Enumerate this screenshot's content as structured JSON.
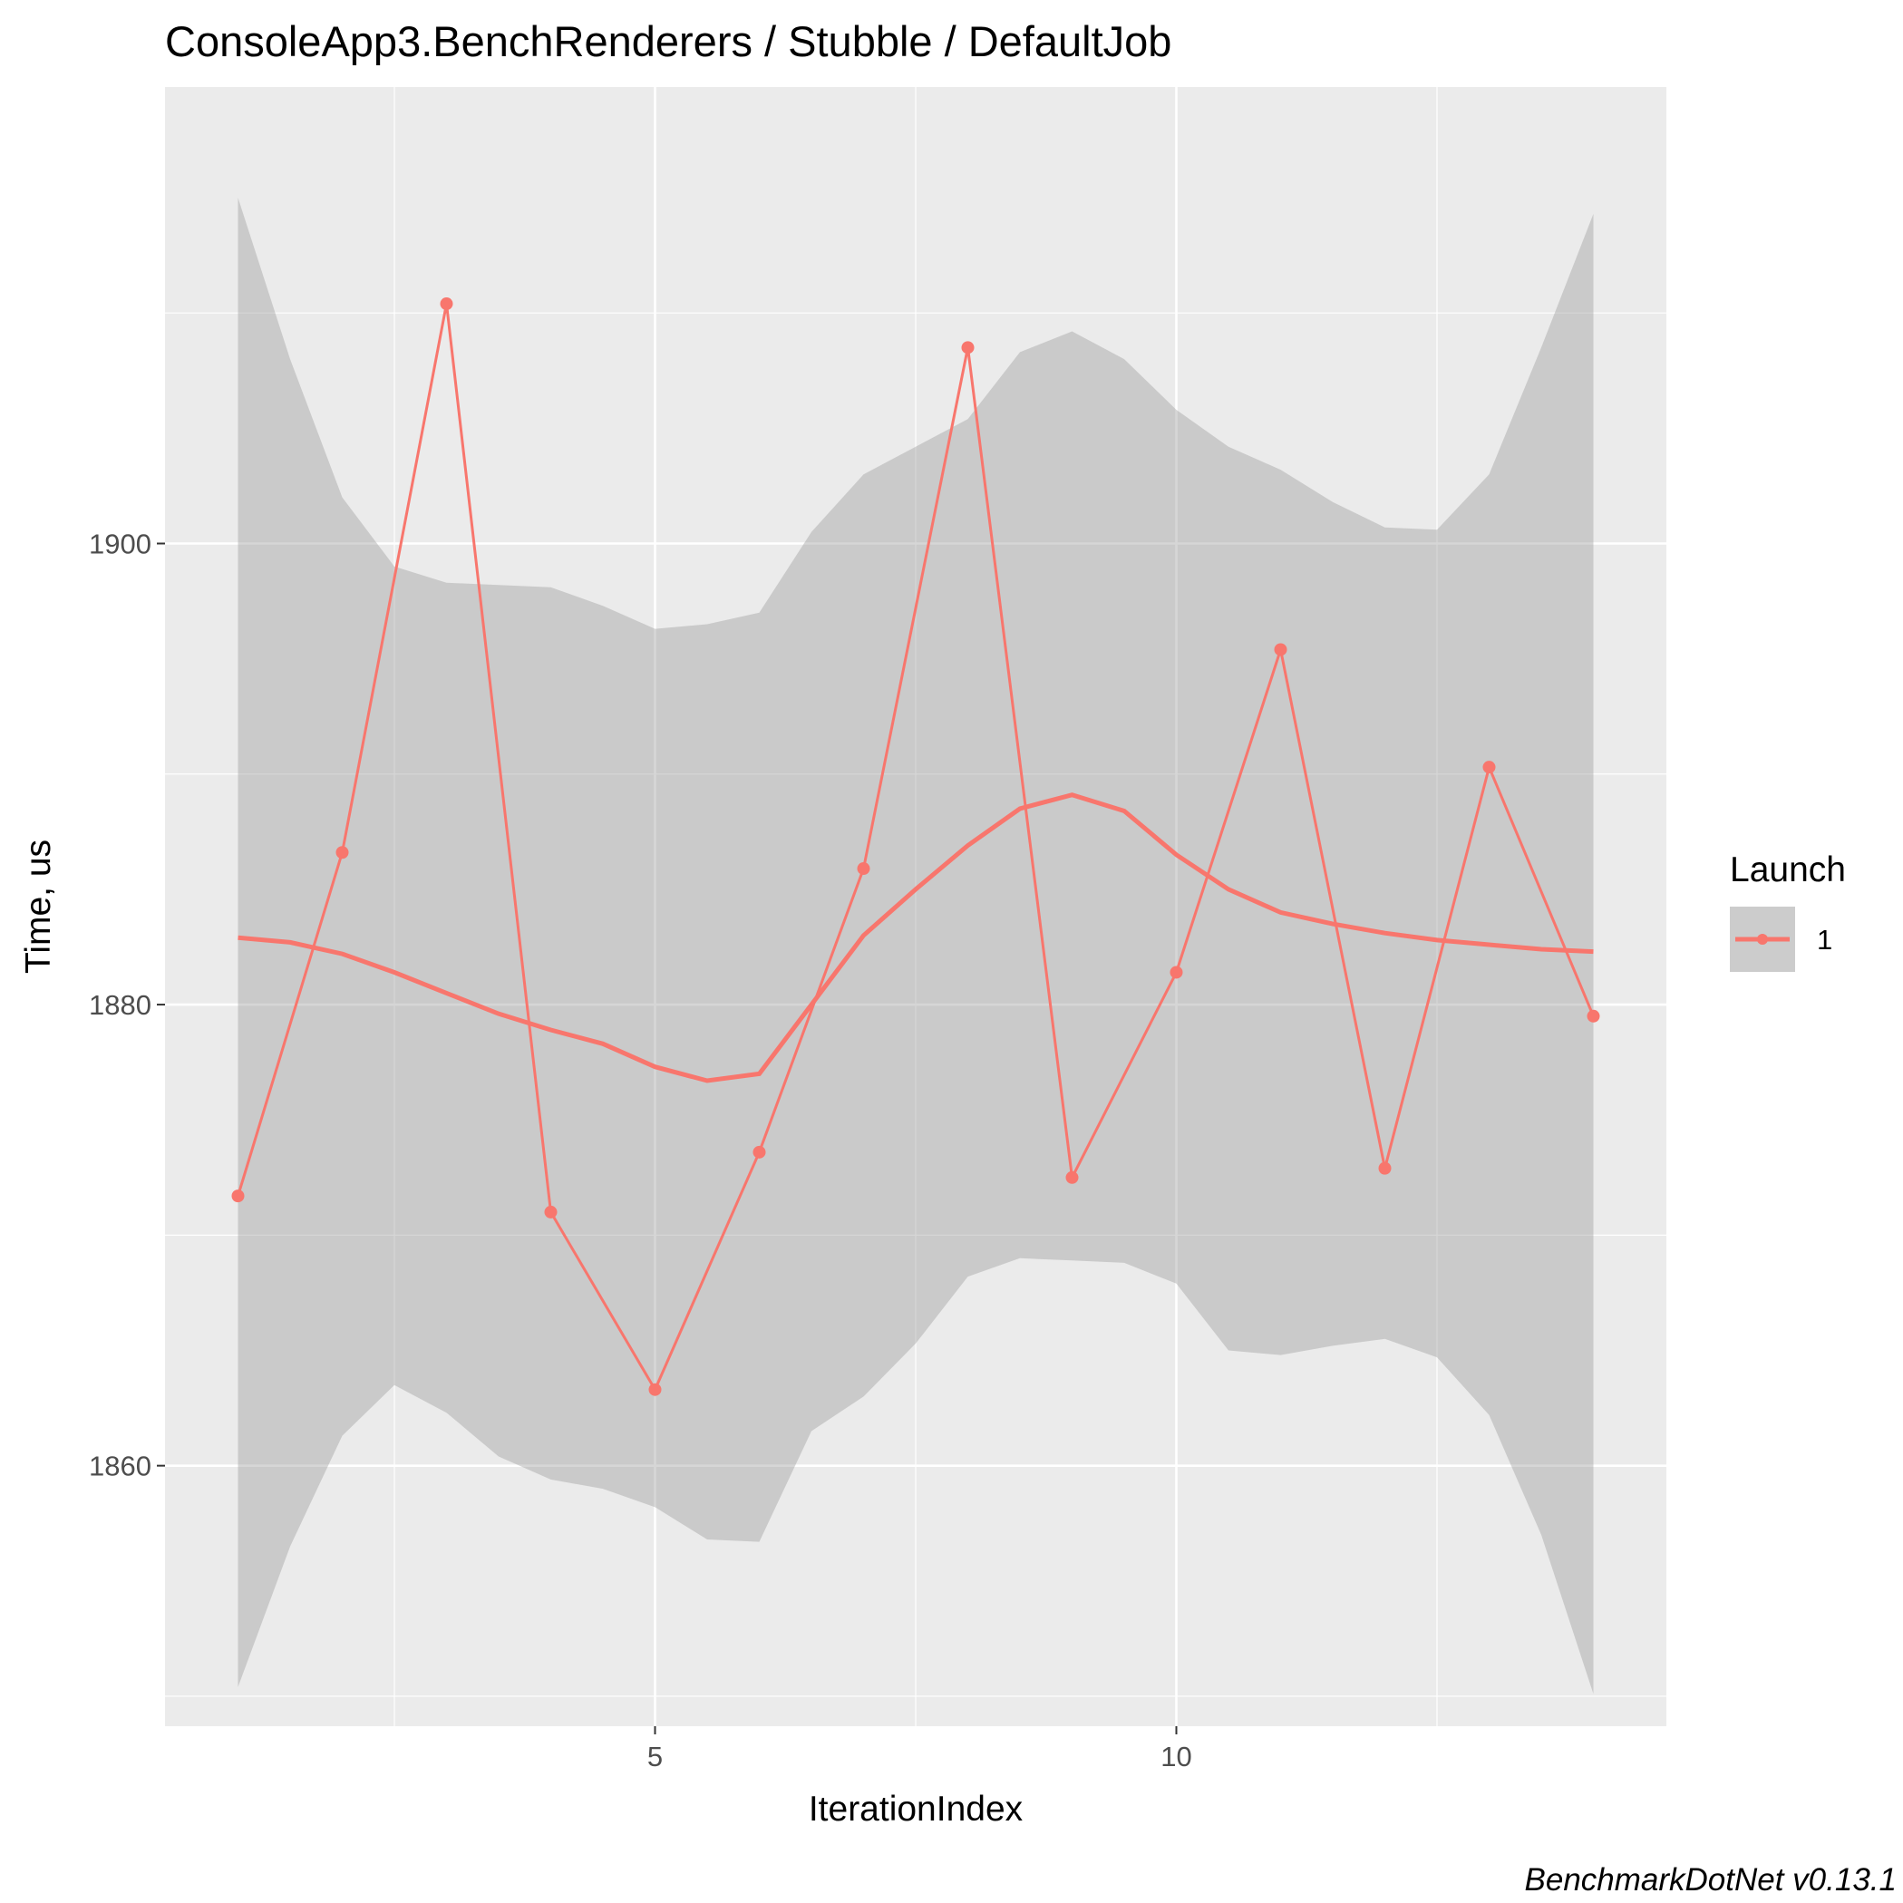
{
  "chart_data": {
    "type": "line",
    "title": "ConsoleApp3.BenchRenderers / Stubble / DefaultJob",
    "xlabel": "IterationIndex",
    "ylabel": "Time, us",
    "xlim": [
      0.3,
      14.7
    ],
    "ylim": [
      1848.7,
      1919.8
    ],
    "x_ticks": [
      5,
      10
    ],
    "x_tick_labels": [
      "5",
      "10"
    ],
    "x_minor_ticks": [
      2.5,
      7.5,
      12.5
    ],
    "y_ticks": [
      1860,
      1880,
      1900
    ],
    "y_tick_labels": [
      "1860",
      "1880",
      "1900"
    ],
    "y_minor_ticks": [
      1850,
      1870,
      1890,
      1910
    ],
    "grid": true,
    "legend": {
      "title": "Launch",
      "position": "right",
      "entries": [
        "1"
      ]
    },
    "series": [
      {
        "name": "1",
        "color": "#F8766D",
        "x": [
          1,
          2,
          3,
          4,
          5,
          6,
          7,
          8,
          9,
          10,
          11,
          12,
          13,
          14
        ],
        "values": [
          1871.7,
          1886.6,
          1910.4,
          1871.0,
          1863.3,
          1873.6,
          1885.9,
          1908.5,
          1872.5,
          1881.4,
          1895.4,
          1872.9,
          1890.3,
          1879.5
        ]
      }
    ],
    "smooth": {
      "color": "#F8766D",
      "band_color": "#999999",
      "x": [
        1,
        1.5,
        2,
        2.5,
        3,
        3.5,
        4,
        4.5,
        5,
        5.5,
        6,
        6.5,
        7,
        7.5,
        8,
        8.5,
        9,
        9.5,
        10,
        10.5,
        11,
        11.5,
        12,
        12.5,
        13,
        13.5,
        14
      ],
      "y": [
        1882.9,
        1882.7,
        1882.2,
        1881.4,
        1880.5,
        1879.6,
        1878.9,
        1878.3,
        1877.3,
        1876.7,
        1877.0,
        1880.0,
        1883.0,
        1885.0,
        1886.9,
        1888.5,
        1889.1,
        1888.4,
        1886.5,
        1885.0,
        1884.0,
        1883.5,
        1883.1,
        1882.8,
        1882.6,
        1882.4,
        1882.3
      ],
      "lower": [
        1850.4,
        1856.5,
        1861.3,
        1863.5,
        1862.3,
        1860.4,
        1859.4,
        1859.0,
        1858.2,
        1856.8,
        1856.7,
        1861.5,
        1863.0,
        1865.3,
        1868.2,
        1869.0,
        1868.9,
        1868.8,
        1867.9,
        1865.0,
        1864.8,
        1865.2,
        1865.5,
        1864.7,
        1862.2,
        1857.0,
        1850.1
      ],
      "upper": [
        1915.0,
        1908.0,
        1902.0,
        1899.0,
        1898.3,
        1898.2,
        1898.1,
        1897.3,
        1896.3,
        1896.5,
        1897.0,
        1900.5,
        1903.0,
        1904.2,
        1905.4,
        1908.3,
        1909.2,
        1908.0,
        1905.8,
        1904.2,
        1903.2,
        1901.8,
        1900.7,
        1900.6,
        1903.0,
        1908.5,
        1914.3
      ]
    }
  },
  "caption": "BenchmarkDotNet v0.13.1"
}
